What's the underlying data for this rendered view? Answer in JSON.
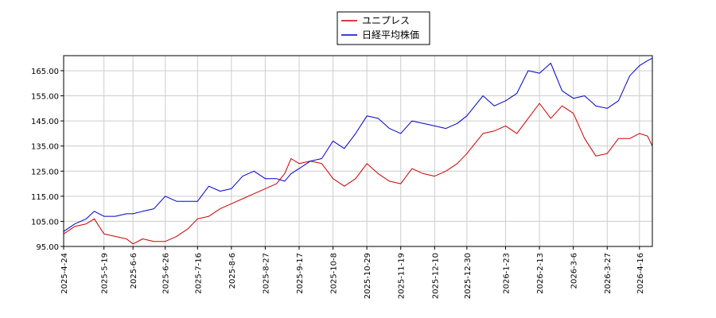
{
  "chart_data": {
    "type": "line",
    "title": "",
    "xlabel": "",
    "ylabel": "",
    "ylim": [
      95,
      171
    ],
    "y_ticks": [
      "95.00",
      "105.00",
      "115.00",
      "125.00",
      "135.00",
      "145.00",
      "155.00",
      "165.00"
    ],
    "x_ticks": [
      "2025-4-24",
      "2025-5-19",
      "2025-6-6",
      "2025-6-26",
      "2025-7-16",
      "2025-8-6",
      "2025-8-27",
      "2025-9-17",
      "2025-10-8",
      "2025-10-29",
      "2025-11-19",
      "2025-12-10",
      "2025-12-30",
      "2026-1-23",
      "2026-2-13",
      "2026-3-6",
      "2026-3-27",
      "2026-4-16"
    ],
    "grid": true,
    "legend_position": "top-center",
    "series": [
      {
        "name": "ユニプレス",
        "color": "#cc0000",
        "x": [
          "2025-4-24",
          "2025-5-1",
          "2025-5-8",
          "2025-5-13",
          "2025-5-19",
          "2025-5-26",
          "2025-6-2",
          "2025-6-6",
          "2025-6-12",
          "2025-6-19",
          "2025-6-26",
          "2025-7-3",
          "2025-7-10",
          "2025-7-16",
          "2025-7-23",
          "2025-7-30",
          "2025-8-6",
          "2025-8-13",
          "2025-8-20",
          "2025-8-27",
          "2025-9-3",
          "2025-9-8",
          "2025-9-12",
          "2025-9-17",
          "2025-9-24",
          "2025-10-1",
          "2025-10-8",
          "2025-10-15",
          "2025-10-22",
          "2025-10-29",
          "2025-11-5",
          "2025-11-12",
          "2025-11-19",
          "2025-11-26",
          "2025-12-3",
          "2025-12-10",
          "2025-12-17",
          "2025-12-24",
          "2025-12-30",
          "2026-1-9",
          "2026-1-16",
          "2026-1-23",
          "2026-1-30",
          "2026-2-6",
          "2026-2-13",
          "2026-2-20",
          "2026-2-27",
          "2026-3-6",
          "2026-3-13",
          "2026-3-20",
          "2026-3-27",
          "2026-4-3",
          "2026-4-10",
          "2026-4-16",
          "2026-4-21",
          "2026-4-24"
        ],
        "values": [
          100,
          103,
          104,
          106,
          100,
          99,
          98,
          96,
          98,
          97,
          97,
          99,
          102,
          106,
          107,
          110,
          112,
          114,
          116,
          118,
          120,
          124,
          130,
          128,
          129,
          128,
          122,
          119,
          122,
          128,
          124,
          121,
          120,
          126,
          124,
          123,
          125,
          128,
          132,
          140,
          141,
          143,
          140,
          146,
          152,
          146,
          151,
          148,
          138,
          131,
          132,
          138,
          138,
          140,
          139,
          135
        ]
      },
      {
        "name": "日経平均株価",
        "color": "#0000cc",
        "x": [
          "2025-4-24",
          "2025-5-1",
          "2025-5-8",
          "2025-5-13",
          "2025-5-19",
          "2025-5-26",
          "2025-6-2",
          "2025-6-6",
          "2025-6-12",
          "2025-6-19",
          "2025-6-26",
          "2025-7-3",
          "2025-7-10",
          "2025-7-16",
          "2025-7-23",
          "2025-7-30",
          "2025-8-6",
          "2025-8-13",
          "2025-8-20",
          "2025-8-27",
          "2025-9-3",
          "2025-9-8",
          "2025-9-12",
          "2025-9-17",
          "2025-9-24",
          "2025-10-1",
          "2025-10-8",
          "2025-10-15",
          "2025-10-22",
          "2025-10-29",
          "2025-11-5",
          "2025-11-12",
          "2025-11-19",
          "2025-11-26",
          "2025-12-3",
          "2025-12-10",
          "2025-12-17",
          "2025-12-24",
          "2025-12-30",
          "2026-1-9",
          "2026-1-16",
          "2026-1-23",
          "2026-1-30",
          "2026-2-6",
          "2026-2-13",
          "2026-2-20",
          "2026-2-27",
          "2026-3-6",
          "2026-3-13",
          "2026-3-20",
          "2026-3-27",
          "2026-4-3",
          "2026-4-10",
          "2026-4-16",
          "2026-4-21",
          "2026-4-24"
        ],
        "values": [
          101,
          104,
          106,
          109,
          107,
          107,
          108,
          108,
          109,
          110,
          115,
          113,
          113,
          113,
          119,
          117,
          118,
          123,
          125,
          122,
          122,
          121,
          124,
          126,
          129,
          130,
          137,
          134,
          140,
          147,
          146,
          142,
          140,
          145,
          144,
          143,
          142,
          144,
          147,
          155,
          151,
          153,
          156,
          165,
          164,
          168,
          157,
          154,
          155,
          151,
          150,
          153,
          163,
          167,
          169,
          170
        ]
      }
    ]
  }
}
